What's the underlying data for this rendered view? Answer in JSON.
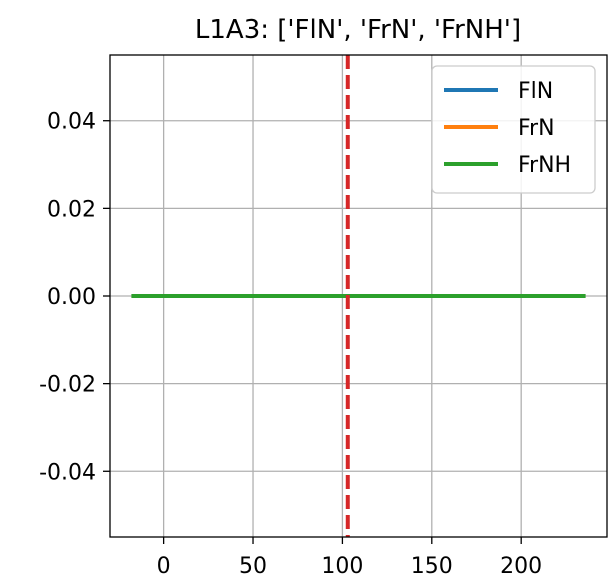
{
  "chart_data": {
    "type": "line",
    "title": "L1A3: ['FlN', 'FrN', 'FrNH']",
    "xlabel": "",
    "ylabel": "",
    "xlim": [
      -30,
      248
    ],
    "ylim": [
      -0.055,
      0.055
    ],
    "xticks": [
      0,
      50,
      100,
      150,
      200
    ],
    "xtick_labels": [
      "0",
      "50",
      "100",
      "150",
      "200"
    ],
    "yticks": [
      0.04,
      0.02,
      0.0,
      -0.02,
      -0.04
    ],
    "ytick_labels": [
      "0.04",
      "0.02",
      "0.00",
      "-0.02",
      "-0.04"
    ],
    "grid": true,
    "legend_position": "top-right",
    "series": [
      {
        "name": "FlN",
        "color": "#1f77b4",
        "x": [
          -18,
          236
        ],
        "y": [
          0,
          0
        ]
      },
      {
        "name": "FrN",
        "color": "#ff7f0e",
        "x": [
          -18,
          236
        ],
        "y": [
          0,
          0
        ]
      },
      {
        "name": "FrNH",
        "color": "#2ca02c",
        "x": [
          -18,
          236
        ],
        "y": [
          0,
          0
        ]
      }
    ],
    "vline": {
      "x": 103,
      "color": "#d62728",
      "style": "dashed"
    }
  }
}
